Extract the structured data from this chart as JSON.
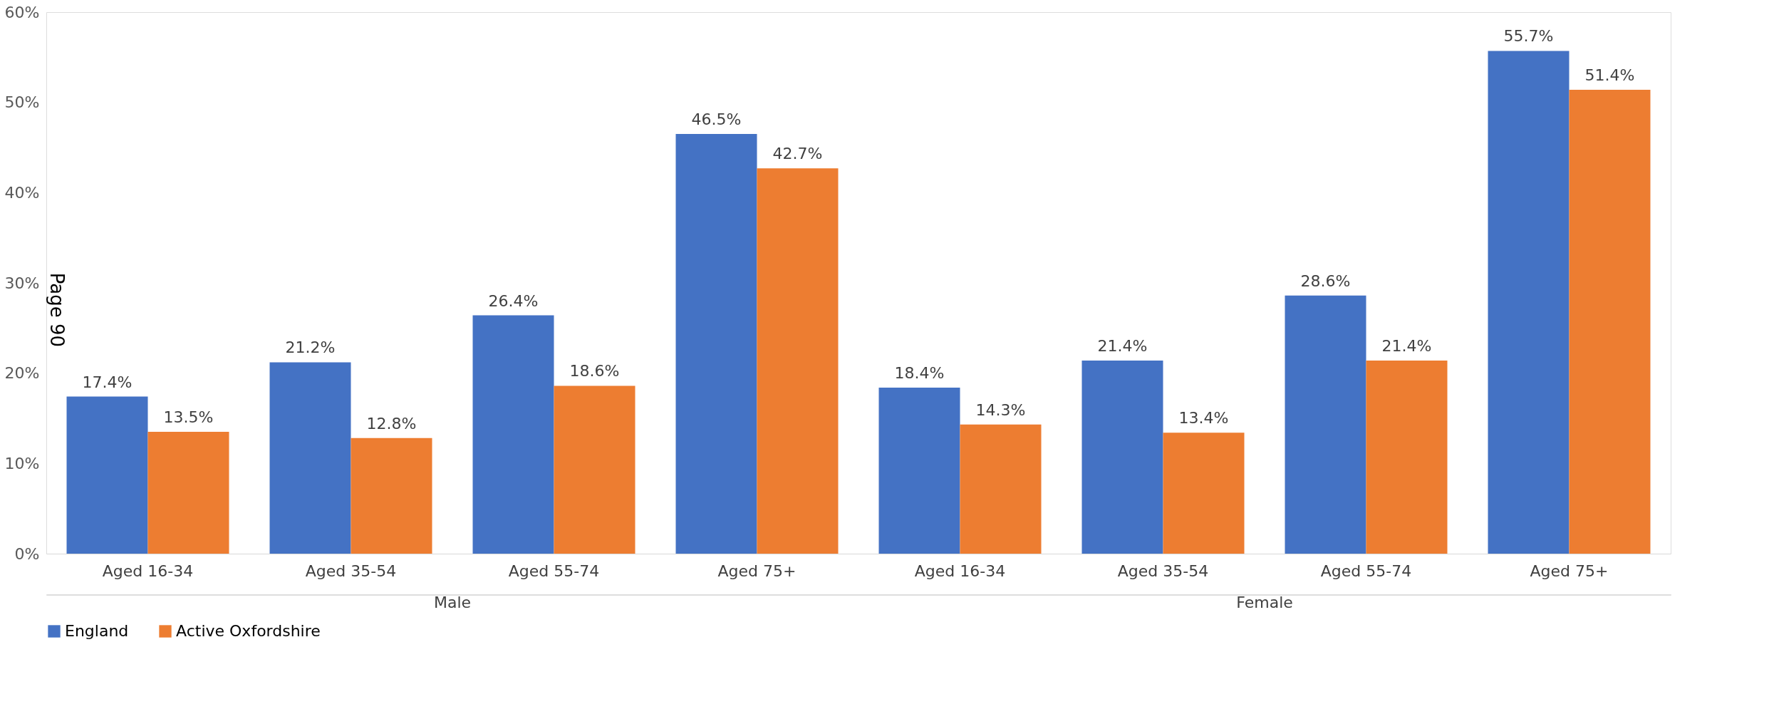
{
  "chart_data": {
    "type": "bar",
    "categories": [
      "Aged 16-34",
      "Aged 35-54",
      "Aged 55-74",
      "Aged 75+",
      "Aged 16-34",
      "Aged 35-54",
      "Aged 55-74",
      "Aged 75+"
    ],
    "series": [
      {
        "name": "England",
        "color": "#4472c4",
        "values": [
          17.4,
          21.2,
          26.4,
          46.5,
          18.4,
          21.4,
          28.6,
          55.7
        ],
        "value_labels": [
          "17.4%",
          "21.2%",
          "26.4%",
          "46.5%",
          "18.4%",
          "21.4%",
          "28.6%",
          "55.7%"
        ]
      },
      {
        "name": "Active Oxfordshire",
        "color": "#ed7d31",
        "values": [
          13.5,
          12.8,
          18.6,
          42.7,
          14.3,
          13.4,
          21.4,
          51.4
        ],
        "value_labels": [
          "13.5%",
          "12.8%",
          "18.6%",
          "42.7%",
          "14.3%",
          "13.4%",
          "21.4%",
          "51.4%"
        ]
      }
    ],
    "ylim": [
      0,
      60
    ],
    "yticks": [
      {
        "value": 0,
        "label": "0%"
      },
      {
        "value": 10,
        "label": "10%"
      },
      {
        "value": 20,
        "label": "20%"
      },
      {
        "value": 30,
        "label": "30%"
      },
      {
        "value": 40,
        "label": "40%"
      },
      {
        "value": 50,
        "label": "50%"
      },
      {
        "value": 60,
        "label": "60%"
      }
    ],
    "grid": false,
    "legend": "bottom",
    "annotations": [
      "Male",
      "Female",
      "Page 90"
    ]
  }
}
